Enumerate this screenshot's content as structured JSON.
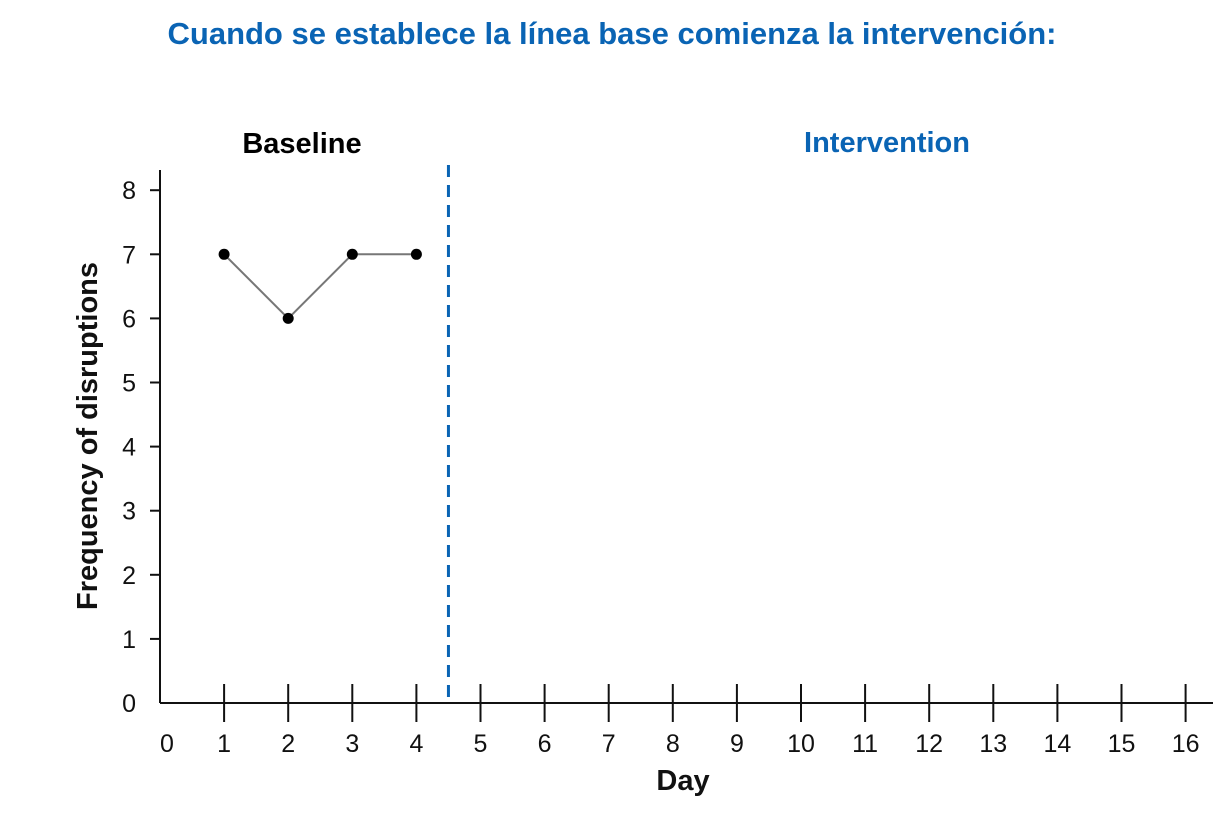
{
  "chart_data": {
    "type": "line",
    "title": "Cuando se establece la línea base comienza la intervención:",
    "xlabel": "Day",
    "ylabel": "Frequency of disruptions",
    "xlim": [
      0,
      16
    ],
    "ylim": [
      0,
      8
    ],
    "xticks": [
      "0",
      "1",
      "2",
      "3",
      "4",
      "5",
      "6",
      "7",
      "8",
      "9",
      "10",
      "11",
      "12",
      "13",
      "14",
      "15",
      "16"
    ],
    "yticks": [
      "0",
      "1",
      "2",
      "3",
      "4",
      "5",
      "6",
      "7",
      "8"
    ],
    "phases": [
      {
        "label": "Baseline",
        "color": "#000000"
      },
      {
        "label": "Intervention",
        "color": "#0a64b4"
      }
    ],
    "phase_change_x": 4.5,
    "series": [
      {
        "x": [
          1,
          2,
          3,
          4
        ],
        "values": [
          7,
          6,
          7,
          7
        ]
      }
    ],
    "grid": false,
    "colors": {
      "title": "#0a64b4",
      "phase_line": "#0a64b4",
      "line": "#777777",
      "point": "#000000"
    }
  }
}
